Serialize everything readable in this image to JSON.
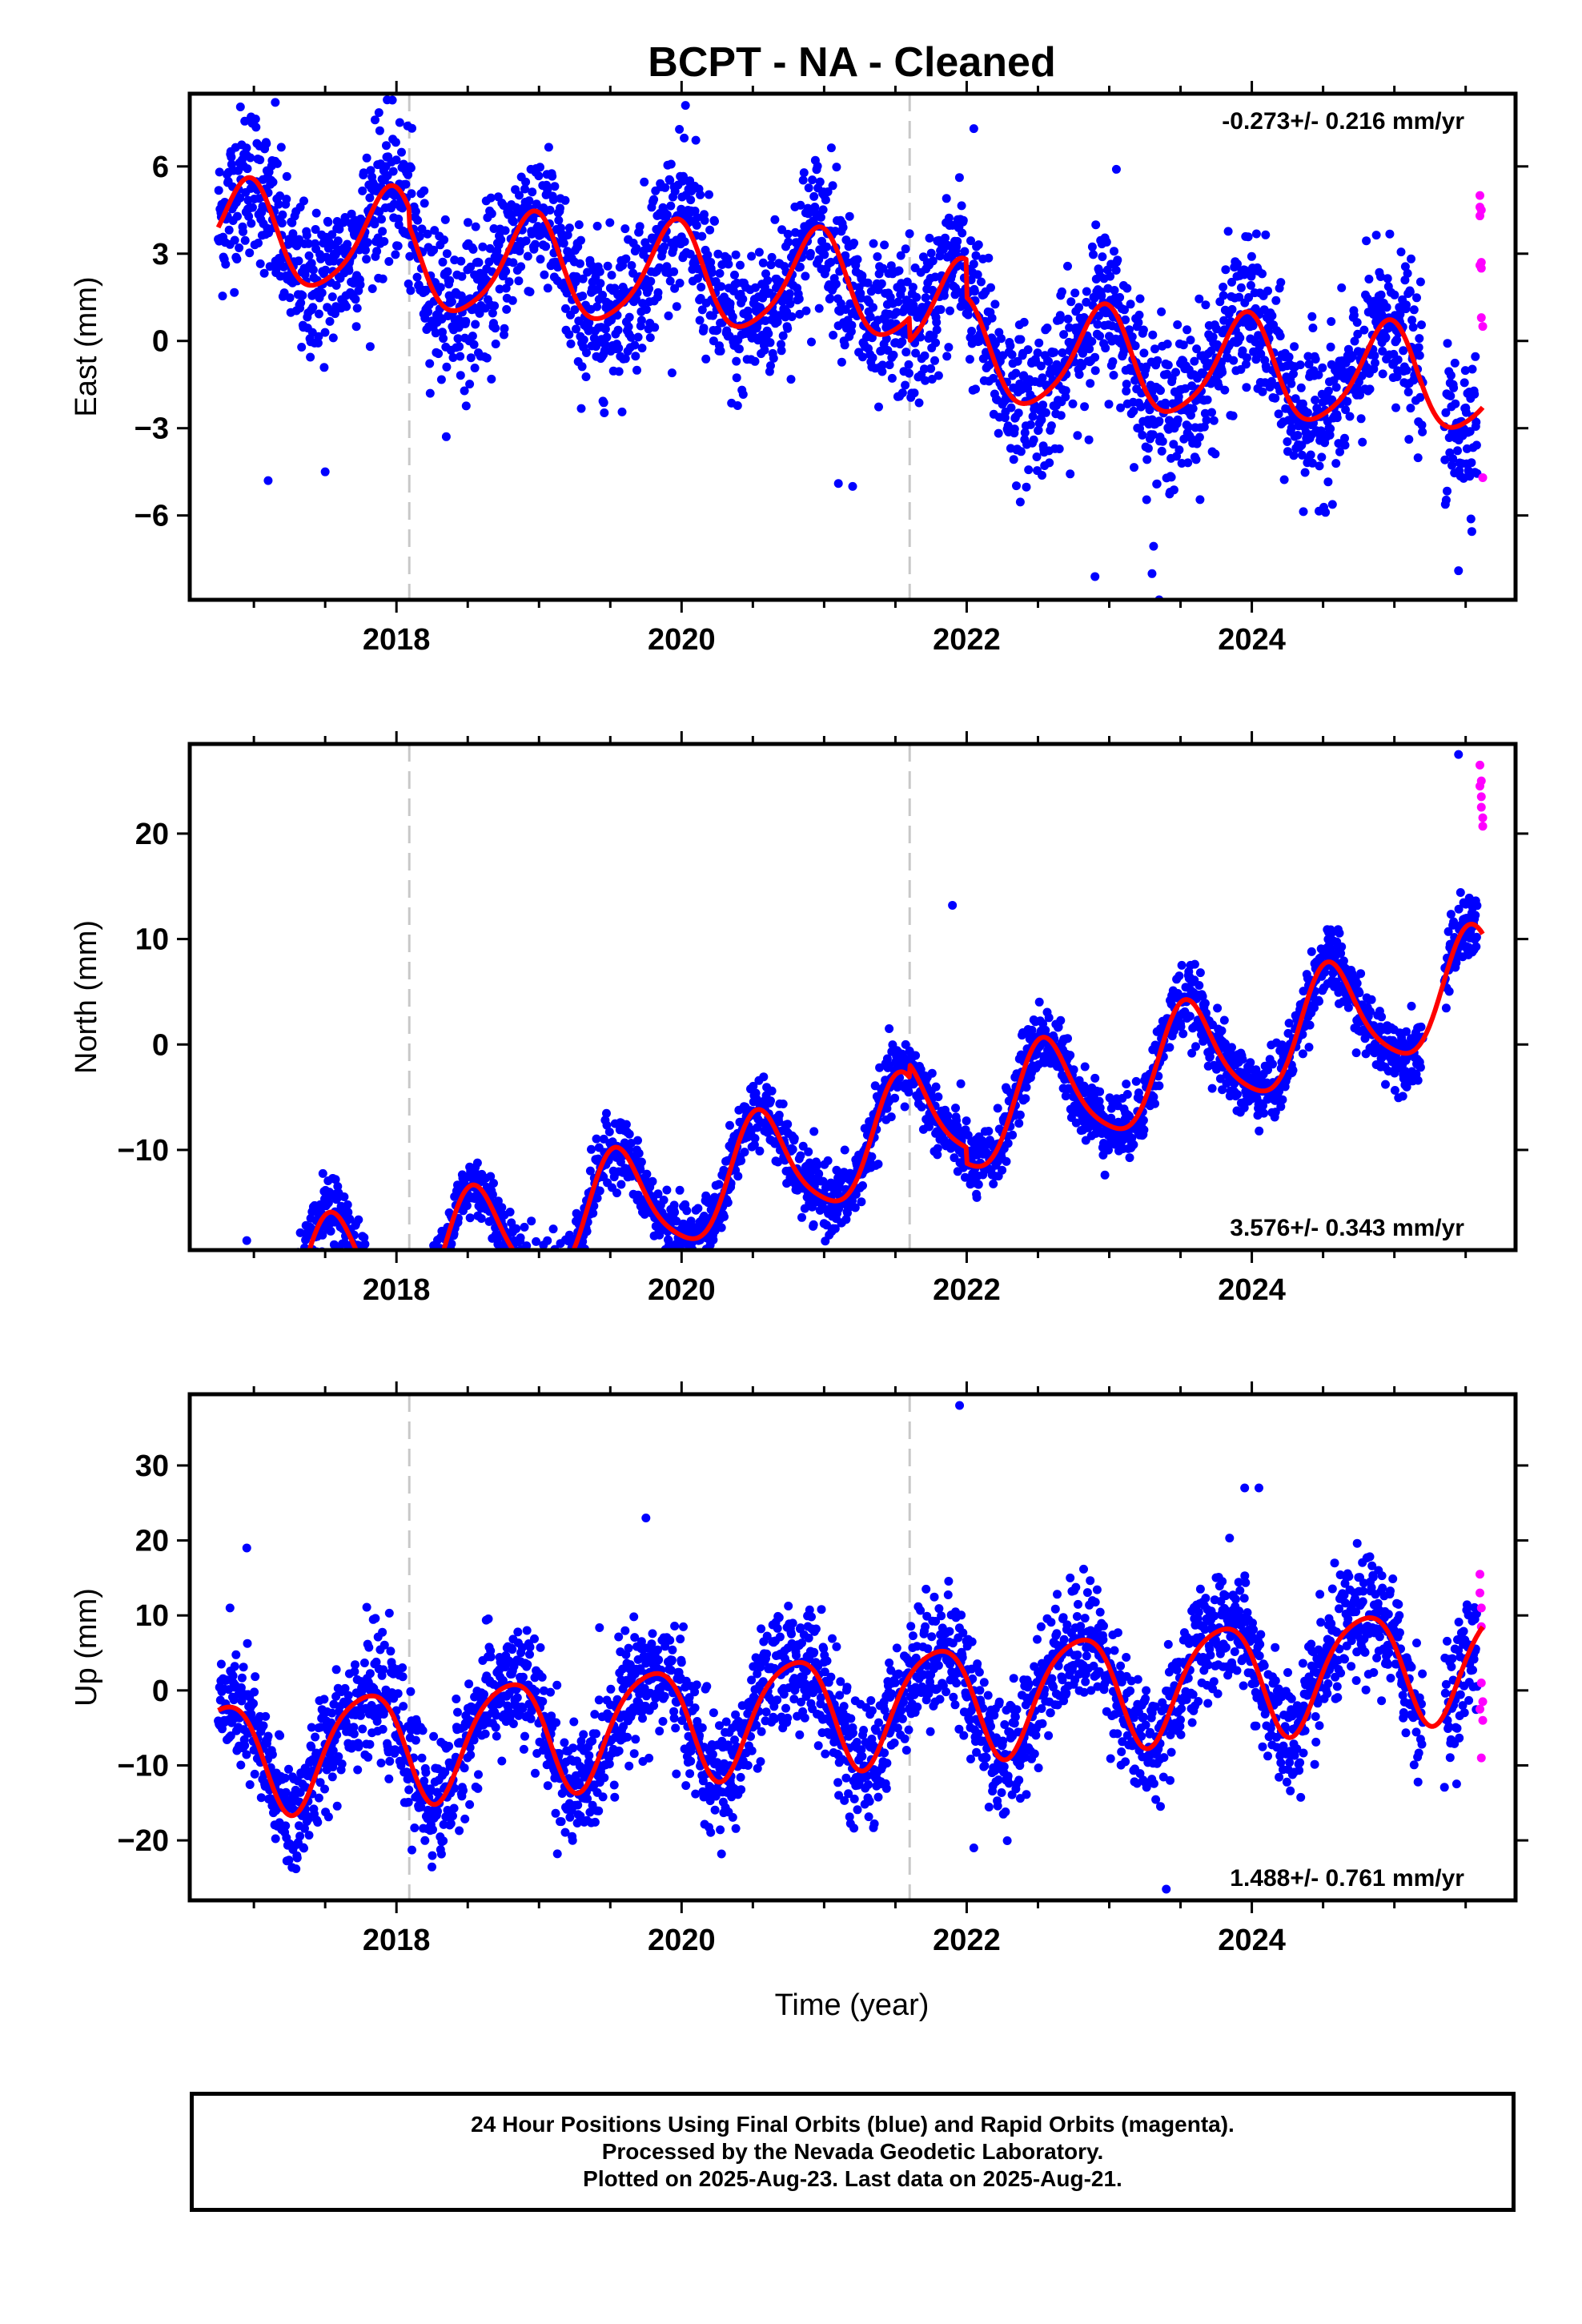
{
  "title": "BCPT  - NA - Cleaned",
  "xlabel": "Time (year)",
  "colors": {
    "final_orbits": "#0000ff",
    "rapid_orbits": "#ff00ff",
    "model_fit": "#ff0000",
    "event_lines": "#c8c8c8"
  },
  "chart_data": [
    {
      "type": "scatter",
      "component": "East",
      "ylabel": "East (mm)",
      "rate_text": "-0.273+/- 0.216 mm/yr",
      "xlim": [
        2016.55,
        2025.85
      ],
      "ylim": [
        -8.9,
        8.5
      ],
      "xticks": [
        2018,
        2020,
        2022,
        2024
      ],
      "xtick_labels": [
        "2018",
        "2020",
        "2022",
        "2024"
      ],
      "yticks": [
        -6,
        -3,
        0,
        3,
        6
      ],
      "ytick_labels": [
        "−6",
        "−3",
        "0",
        "3",
        "6"
      ],
      "event_lines_x": [
        2018.09,
        2021.6
      ],
      "model": {
        "offset": 2.5,
        "trend": -0.273,
        "ann_amp": 1.75,
        "ann_peak": 0.95,
        "semi_amp": 0.3,
        "steps": [
          [
            2018.09,
            -0.6
          ],
          [
            2021.6,
            -0.8
          ],
          [
            2022.0,
            -1.3
          ]
        ]
      },
      "series": [
        {
          "name": "Final Orbits",
          "x_start": 2016.75,
          "x_end": 2025.58,
          "n_points": 2900,
          "scatter_sd": 1.3,
          "gaps": [
            [
              2025.2,
              2025.35
            ]
          ]
        },
        {
          "name": "Rapid Orbits",
          "x": [
            2025.6,
            2025.6,
            2025.6,
            2025.61,
            2025.61,
            2025.61,
            2025.62,
            2025.62,
            2025.61,
            2025.6
          ],
          "y": [
            5.0,
            4.6,
            4.3,
            2.7,
            2.5,
            0.8,
            0.5,
            -4.7,
            4.5,
            2.6
          ]
        }
      ],
      "outliers": [
        [
          2016.98,
          7.7
        ],
        [
          2017.15,
          8.2
        ],
        [
          2017.85,
          7.6
        ],
        [
          2020.1,
          6.9
        ],
        [
          2022.05,
          7.3
        ],
        [
          2023.05,
          5.9
        ],
        [
          2023.35,
          -8.9
        ],
        [
          2023.3,
          -8.0
        ],
        [
          2022.9,
          -8.1
        ],
        [
          2025.45,
          -7.9
        ],
        [
          2017.1,
          -4.8
        ],
        [
          2017.5,
          -4.5
        ],
        [
          2021.2,
          -5.0
        ],
        [
          2021.1,
          -4.9
        ]
      ]
    },
    {
      "type": "scatter",
      "component": "North",
      "ylabel": "North (mm)",
      "rate_text": "3.576+/- 0.343 mm/yr",
      "xlim": [
        2016.55,
        2025.85
      ],
      "ylim": [
        -19.5,
        28.5
      ],
      "xticks": [
        2018,
        2020,
        2022,
        2024
      ],
      "xtick_labels": [
        "2018",
        "2020",
        "2022",
        "2024"
      ],
      "yticks": [
        -10,
        0,
        10,
        20
      ],
      "ytick_labels": [
        "−10",
        "0",
        "10",
        "20"
      ],
      "event_lines_x": [
        2018.09,
        2021.6
      ],
      "model": {
        "offset": -9.5,
        "trend": 3.576,
        "ann_amp": 5.2,
        "ann_peak": 0.55,
        "semi_amp": 0.9,
        "steps": [
          [
            2018.09,
            -1.0
          ],
          [
            2021.6,
            1.2
          ],
          [
            2022.0,
            -1.5
          ]
        ]
      },
      "series": [
        {
          "name": "Final Orbits",
          "x_start": 2016.75,
          "x_end": 2025.58,
          "n_points": 2900,
          "scatter_sd": 1.6,
          "gaps": [
            [
              2025.2,
              2025.35
            ]
          ]
        },
        {
          "name": "Rapid Orbits",
          "x": [
            2025.6,
            2025.6,
            2025.61,
            2025.61,
            2025.62,
            2025.62,
            2025.61
          ],
          "y": [
            26.5,
            24.5,
            23.5,
            22.5,
            21.5,
            20.7,
            25.0
          ]
        }
      ],
      "outliers": [
        [
          2021.9,
          13.2
        ],
        [
          2019.1,
          -17.5
        ],
        [
          2022.9,
          -3.2
        ],
        [
          2025.45,
          27.5
        ],
        [
          2016.95,
          -18.6
        ]
      ]
    },
    {
      "type": "scatter",
      "component": "Up",
      "ylabel": "Up (mm)",
      "rate_text": "1.488+/- 0.761 mm/yr",
      "xlim": [
        2016.55,
        2025.85
      ],
      "ylim": [
        -28.0,
        39.5
      ],
      "xticks": [
        2018,
        2020,
        2022,
        2024
      ],
      "xtick_labels": [
        "2018",
        "2020",
        "2022",
        "2024"
      ],
      "yticks": [
        -20,
        -10,
        0,
        10,
        20,
        30
      ],
      "ytick_labels": [
        "−20",
        "−10",
        "0",
        "10",
        "20",
        "30"
      ],
      "event_lines_x": [
        2018.09,
        2021.6
      ],
      "model": {
        "offset": -2.5,
        "trend": 1.488,
        "ann_amp": 7.5,
        "ann_peak": 0.78,
        "semi_amp": 1.2,
        "steps": []
      },
      "series": [
        {
          "name": "Final Orbits",
          "x_start": 2016.75,
          "x_end": 2025.58,
          "n_points": 2900,
          "scatter_sd": 4.0,
          "gaps": [
            [
              2025.2,
              2025.35
            ]
          ]
        },
        {
          "name": "Rapid Orbits",
          "x": [
            2025.6,
            2025.6,
            2025.61,
            2025.61,
            2025.61,
            2025.62,
            2025.62,
            2025.61,
            2025.6
          ],
          "y": [
            15.5,
            13.0,
            11.0,
            8.5,
            1.0,
            -1.5,
            -4.0,
            -9.0,
            -2.5
          ]
        }
      ],
      "outliers": [
        [
          2021.95,
          38.0
        ],
        [
          2016.95,
          19.0
        ],
        [
          2019.75,
          23.0
        ],
        [
          2023.95,
          27.0
        ],
        [
          2024.05,
          27.0
        ],
        [
          2023.4,
          -26.5
        ],
        [
          2022.05,
          -21.0
        ]
      ]
    }
  ],
  "caption": {
    "line1": "24 Hour Positions Using Final Orbits (blue) and Rapid Orbits (magenta).",
    "line2": "Processed by the Nevada Geodetic Laboratory.",
    "line3": "Plotted on 2025-Aug-23. Last data on 2025-Aug-21."
  }
}
